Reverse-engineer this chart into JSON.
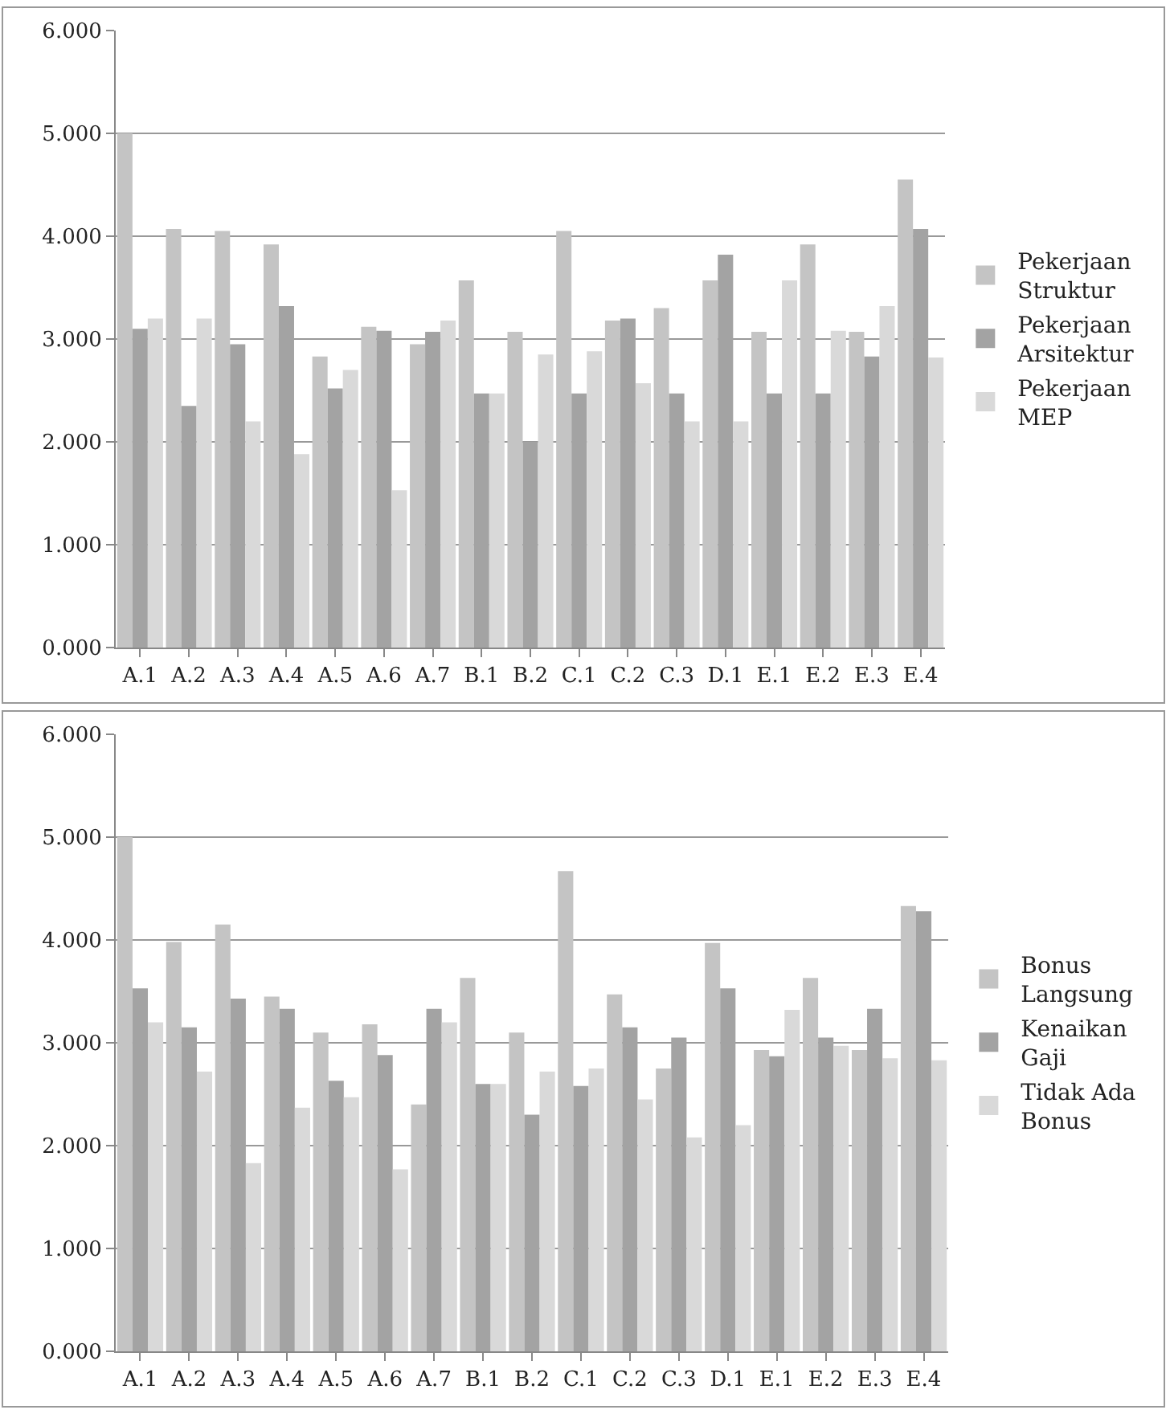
{
  "chart_data": [
    {
      "type": "bar",
      "categories": [
        "A.1",
        "A.2",
        "A.3",
        "A.4",
        "A.5",
        "A.6",
        "A.7",
        "B.1",
        "B.2",
        "C.1",
        "C.2",
        "C.3",
        "D.1",
        "E.1",
        "E.2",
        "E.3",
        "E.4"
      ],
      "series": [
        {
          "name": "Pekerjaan Struktur",
          "color": "#c4c4c4",
          "values": [
            5.0,
            4.07,
            4.05,
            3.92,
            2.83,
            3.12,
            2.95,
            3.57,
            3.07,
            4.05,
            3.18,
            3.3,
            3.57,
            3.07,
            3.92,
            3.07,
            4.55
          ]
        },
        {
          "name": "Pekerjaan Arsitektur",
          "color": "#a3a3a3",
          "values": [
            3.1,
            2.35,
            2.95,
            3.32,
            2.52,
            3.08,
            3.07,
            2.47,
            2.0,
            2.47,
            3.2,
            2.47,
            3.82,
            2.47,
            2.47,
            2.83,
            4.07
          ]
        },
        {
          "name": "Pekerjaan MEP",
          "color": "#d9d9d9",
          "values": [
            3.2,
            3.2,
            2.2,
            1.88,
            2.7,
            1.53,
            3.18,
            2.47,
            2.85,
            2.88,
            2.57,
            2.2,
            2.2,
            3.57,
            3.08,
            3.32,
            2.82
          ]
        }
      ],
      "ylim": [
        0,
        6
      ],
      "yticks": [
        {
          "value": 0,
          "label": "0.000"
        },
        {
          "value": 1,
          "label": "1.000"
        },
        {
          "value": 2,
          "label": "2.000"
        },
        {
          "value": 3,
          "label": "3.000"
        },
        {
          "value": 4,
          "label": "4.000"
        },
        {
          "value": 5,
          "label": "5.000"
        },
        {
          "value": 6,
          "label": "6.000"
        }
      ],
      "grid": "y",
      "legend": "right"
    },
    {
      "type": "bar",
      "categories": [
        "A.1",
        "A.2",
        "A.3",
        "A.4",
        "A.5",
        "A.6",
        "A.7",
        "B.1",
        "B.2",
        "C.1",
        "C.2",
        "C.3",
        "D.1",
        "E.1",
        "E.2",
        "E.3",
        "E.4"
      ],
      "series": [
        {
          "name": "Bonus Langsung",
          "color": "#c4c4c4",
          "values": [
            5.0,
            3.98,
            4.15,
            3.45,
            3.1,
            3.18,
            2.4,
            3.63,
            3.1,
            4.67,
            3.47,
            2.75,
            3.97,
            2.93,
            3.63,
            2.93,
            4.33
          ]
        },
        {
          "name": "Kenaikan Gaji",
          "color": "#a3a3a3",
          "values": [
            3.53,
            3.15,
            3.43,
            3.33,
            2.63,
            2.88,
            3.33,
            2.6,
            2.3,
            2.58,
            3.15,
            3.05,
            3.53,
            2.87,
            3.05,
            3.33,
            4.28
          ]
        },
        {
          "name": "Tidak Ada Bonus",
          "color": "#d9d9d9",
          "values": [
            3.2,
            2.72,
            1.83,
            2.37,
            2.47,
            1.77,
            3.2,
            2.6,
            2.72,
            2.75,
            2.45,
            2.08,
            2.2,
            3.32,
            2.97,
            2.85,
            2.83
          ]
        }
      ],
      "ylim": [
        0,
        6
      ],
      "yticks": [
        {
          "value": 0,
          "label": "0.000"
        },
        {
          "value": 1,
          "label": "1.000"
        },
        {
          "value": 2,
          "label": "2.000"
        },
        {
          "value": 3,
          "label": "3.000"
        },
        {
          "value": 4,
          "label": "4.000"
        },
        {
          "value": 5,
          "label": "5.000"
        },
        {
          "value": 6,
          "label": "6.000"
        }
      ],
      "grid": "y",
      "legend": "right"
    }
  ]
}
